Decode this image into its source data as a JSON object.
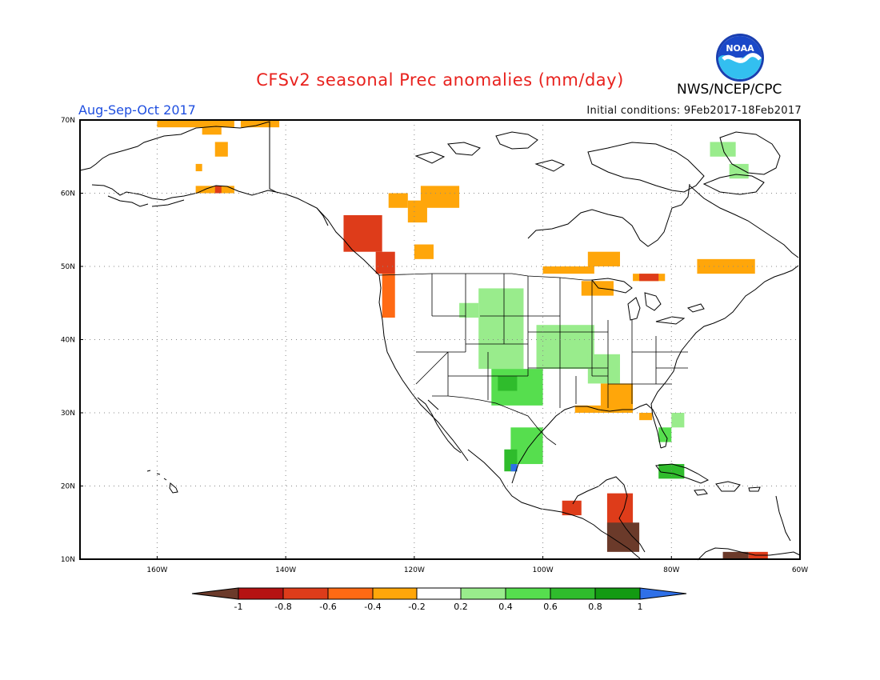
{
  "header": {
    "title": "CFSv2 seasonal Prec anomalies (mm/day)",
    "season": "Aug-Sep-Oct 2017",
    "initial_conditions": "Initial conditions: 9Feb2017-18Feb2017",
    "agency": "NWS/NCEP/CPC",
    "logo_text": "NOAA"
  },
  "map": {
    "projection": "cylindrical equidistant",
    "lon_range": [
      -172,
      -60
    ],
    "lat_range": [
      10,
      70
    ],
    "lon_ticks": [
      -160,
      -140,
      -120,
      -100,
      -80,
      -60
    ],
    "lon_labels": [
      "160W",
      "140W",
      "120W",
      "100W",
      "80W",
      "60W"
    ],
    "lat_ticks": [
      10,
      20,
      30,
      40,
      50,
      60,
      70
    ],
    "lat_labels": [
      "10N",
      "20N",
      "30N",
      "40N",
      "50N",
      "60N",
      "70N"
    ],
    "gridlines": "dotted"
  },
  "colorbar": {
    "labels": [
      "-1",
      "-0.8",
      "-0.6",
      "-0.4",
      "-0.2",
      "0.2",
      "0.4",
      "0.6",
      "0.8",
      "1"
    ],
    "colors": [
      "#6b3a2a",
      "#b51212",
      "#de3c1a",
      "#ff6a14",
      "#ffa60a",
      "#ffffff",
      "#99ec8c",
      "#56de4e",
      "#2fbc2c",
      "#139a12",
      "#2f70e8"
    ]
  },
  "anomaly_regions": [
    {
      "lon": [
        -160,
        -148
      ],
      "lat": [
        69,
        70
      ],
      "value": -0.3
    },
    {
      "lon": [
        -153,
        -150
      ],
      "lat": [
        68,
        69
      ],
      "value": -0.3
    },
    {
      "lon": [
        -147,
        -141
      ],
      "lat": [
        69,
        70
      ],
      "value": -0.3
    },
    {
      "lon": [
        -151,
        -149
      ],
      "lat": [
        65,
        67
      ],
      "value": -0.3
    },
    {
      "lon": [
        -154,
        -153
      ],
      "lat": [
        63,
        64
      ],
      "value": -0.3
    },
    {
      "lon": [
        -154,
        -148
      ],
      "lat": [
        60,
        61
      ],
      "value": -0.3
    },
    {
      "lon": [
        -151,
        -150
      ],
      "lat": [
        60,
        61
      ],
      "value": -0.7
    },
    {
      "lon": [
        -124,
        -121
      ],
      "lat": [
        58,
        60
      ],
      "value": -0.3
    },
    {
      "lon": [
        -119,
        -113
      ],
      "lat": [
        58,
        61
      ],
      "value": -0.3
    },
    {
      "lon": [
        -121,
        -118
      ],
      "lat": [
        56,
        59
      ],
      "value": -0.3
    },
    {
      "lon": [
        -120,
        -117
      ],
      "lat": [
        51,
        53
      ],
      "value": -0.3
    },
    {
      "lon": [
        -100,
        -92
      ],
      "lat": [
        49,
        50
      ],
      "value": -0.3
    },
    {
      "lon": [
        -93,
        -88
      ],
      "lat": [
        50,
        52
      ],
      "value": -0.3
    },
    {
      "lon": [
        -94,
        -89
      ],
      "lat": [
        46,
        48
      ],
      "value": -0.3
    },
    {
      "lon": [
        -86,
        -81
      ],
      "lat": [
        48,
        49
      ],
      "value": -0.3
    },
    {
      "lon": [
        -85,
        -82
      ],
      "lat": [
        48,
        49
      ],
      "value": -0.6
    },
    {
      "lon": [
        -76,
        -67
      ],
      "lat": [
        49,
        51
      ],
      "value": -0.3
    },
    {
      "lon": [
        -131,
        -125
      ],
      "lat": [
        52,
        57
      ],
      "value": -0.7
    },
    {
      "lon": [
        -126,
        -123
      ],
      "lat": [
        49,
        52
      ],
      "value": -0.7
    },
    {
      "lon": [
        -125,
        -123
      ],
      "lat": [
        43,
        49
      ],
      "value": -0.4
    },
    {
      "lon": [
        -91,
        -86
      ],
      "lat": [
        30,
        34
      ],
      "value": -0.3
    },
    {
      "lon": [
        -95,
        -91
      ],
      "lat": [
        30,
        31
      ],
      "value": -0.3
    },
    {
      "lon": [
        -85,
        -83
      ],
      "lat": [
        29,
        30
      ],
      "value": -0.3
    },
    {
      "lon": [
        -113,
        -110
      ],
      "lat": [
        43,
        45
      ],
      "value": 0.3
    },
    {
      "lon": [
        -110,
        -103
      ],
      "lat": [
        36,
        47
      ],
      "value": 0.3
    },
    {
      "lon": [
        -101,
        -92
      ],
      "lat": [
        36,
        42
      ],
      "value": 0.3
    },
    {
      "lon": [
        -108,
        -100
      ],
      "lat": [
        31,
        36
      ],
      "value": 0.5
    },
    {
      "lon": [
        -107,
        -104
      ],
      "lat": [
        33,
        35
      ],
      "value": 0.7
    },
    {
      "lon": [
        -105,
        -100
      ],
      "lat": [
        23,
        28
      ],
      "value": 0.5
    },
    {
      "lon": [
        -106,
        -104
      ],
      "lat": [
        22,
        25
      ],
      "value": 0.7
    },
    {
      "lon": [
        -105,
        -104
      ],
      "lat": [
        22,
        23
      ],
      "value": 1.0
    },
    {
      "lon": [
        -93,
        -88
      ],
      "lat": [
        34,
        38
      ],
      "value": 0.3
    },
    {
      "lon": [
        -80,
        -78
      ],
      "lat": [
        28,
        30
      ],
      "value": 0.3
    },
    {
      "lon": [
        -82,
        -80
      ],
      "lat": [
        26,
        28
      ],
      "value": 0.5
    },
    {
      "lon": [
        -82,
        -78
      ],
      "lat": [
        21,
        23
      ],
      "value": 0.7
    },
    {
      "lon": [
        -74,
        -70
      ],
      "lat": [
        65,
        67
      ],
      "value": 0.3
    },
    {
      "lon": [
        -71,
        -68
      ],
      "lat": [
        62,
        64
      ],
      "value": 0.3
    },
    {
      "lon": [
        -90,
        -86
      ],
      "lat": [
        14,
        19
      ],
      "value": -0.7
    },
    {
      "lon": [
        -90,
        -85
      ],
      "lat": [
        11,
        15
      ],
      "value": -1.0
    },
    {
      "lon": [
        -97,
        -94
      ],
      "lat": [
        16,
        18
      ],
      "value": -0.7
    },
    {
      "lon": [
        -72,
        -68
      ],
      "lat": [
        10,
        11
      ],
      "value": -1.0
    },
    {
      "lon": [
        -68,
        -65
      ],
      "lat": [
        10,
        11
      ],
      "value": -0.7
    }
  ]
}
